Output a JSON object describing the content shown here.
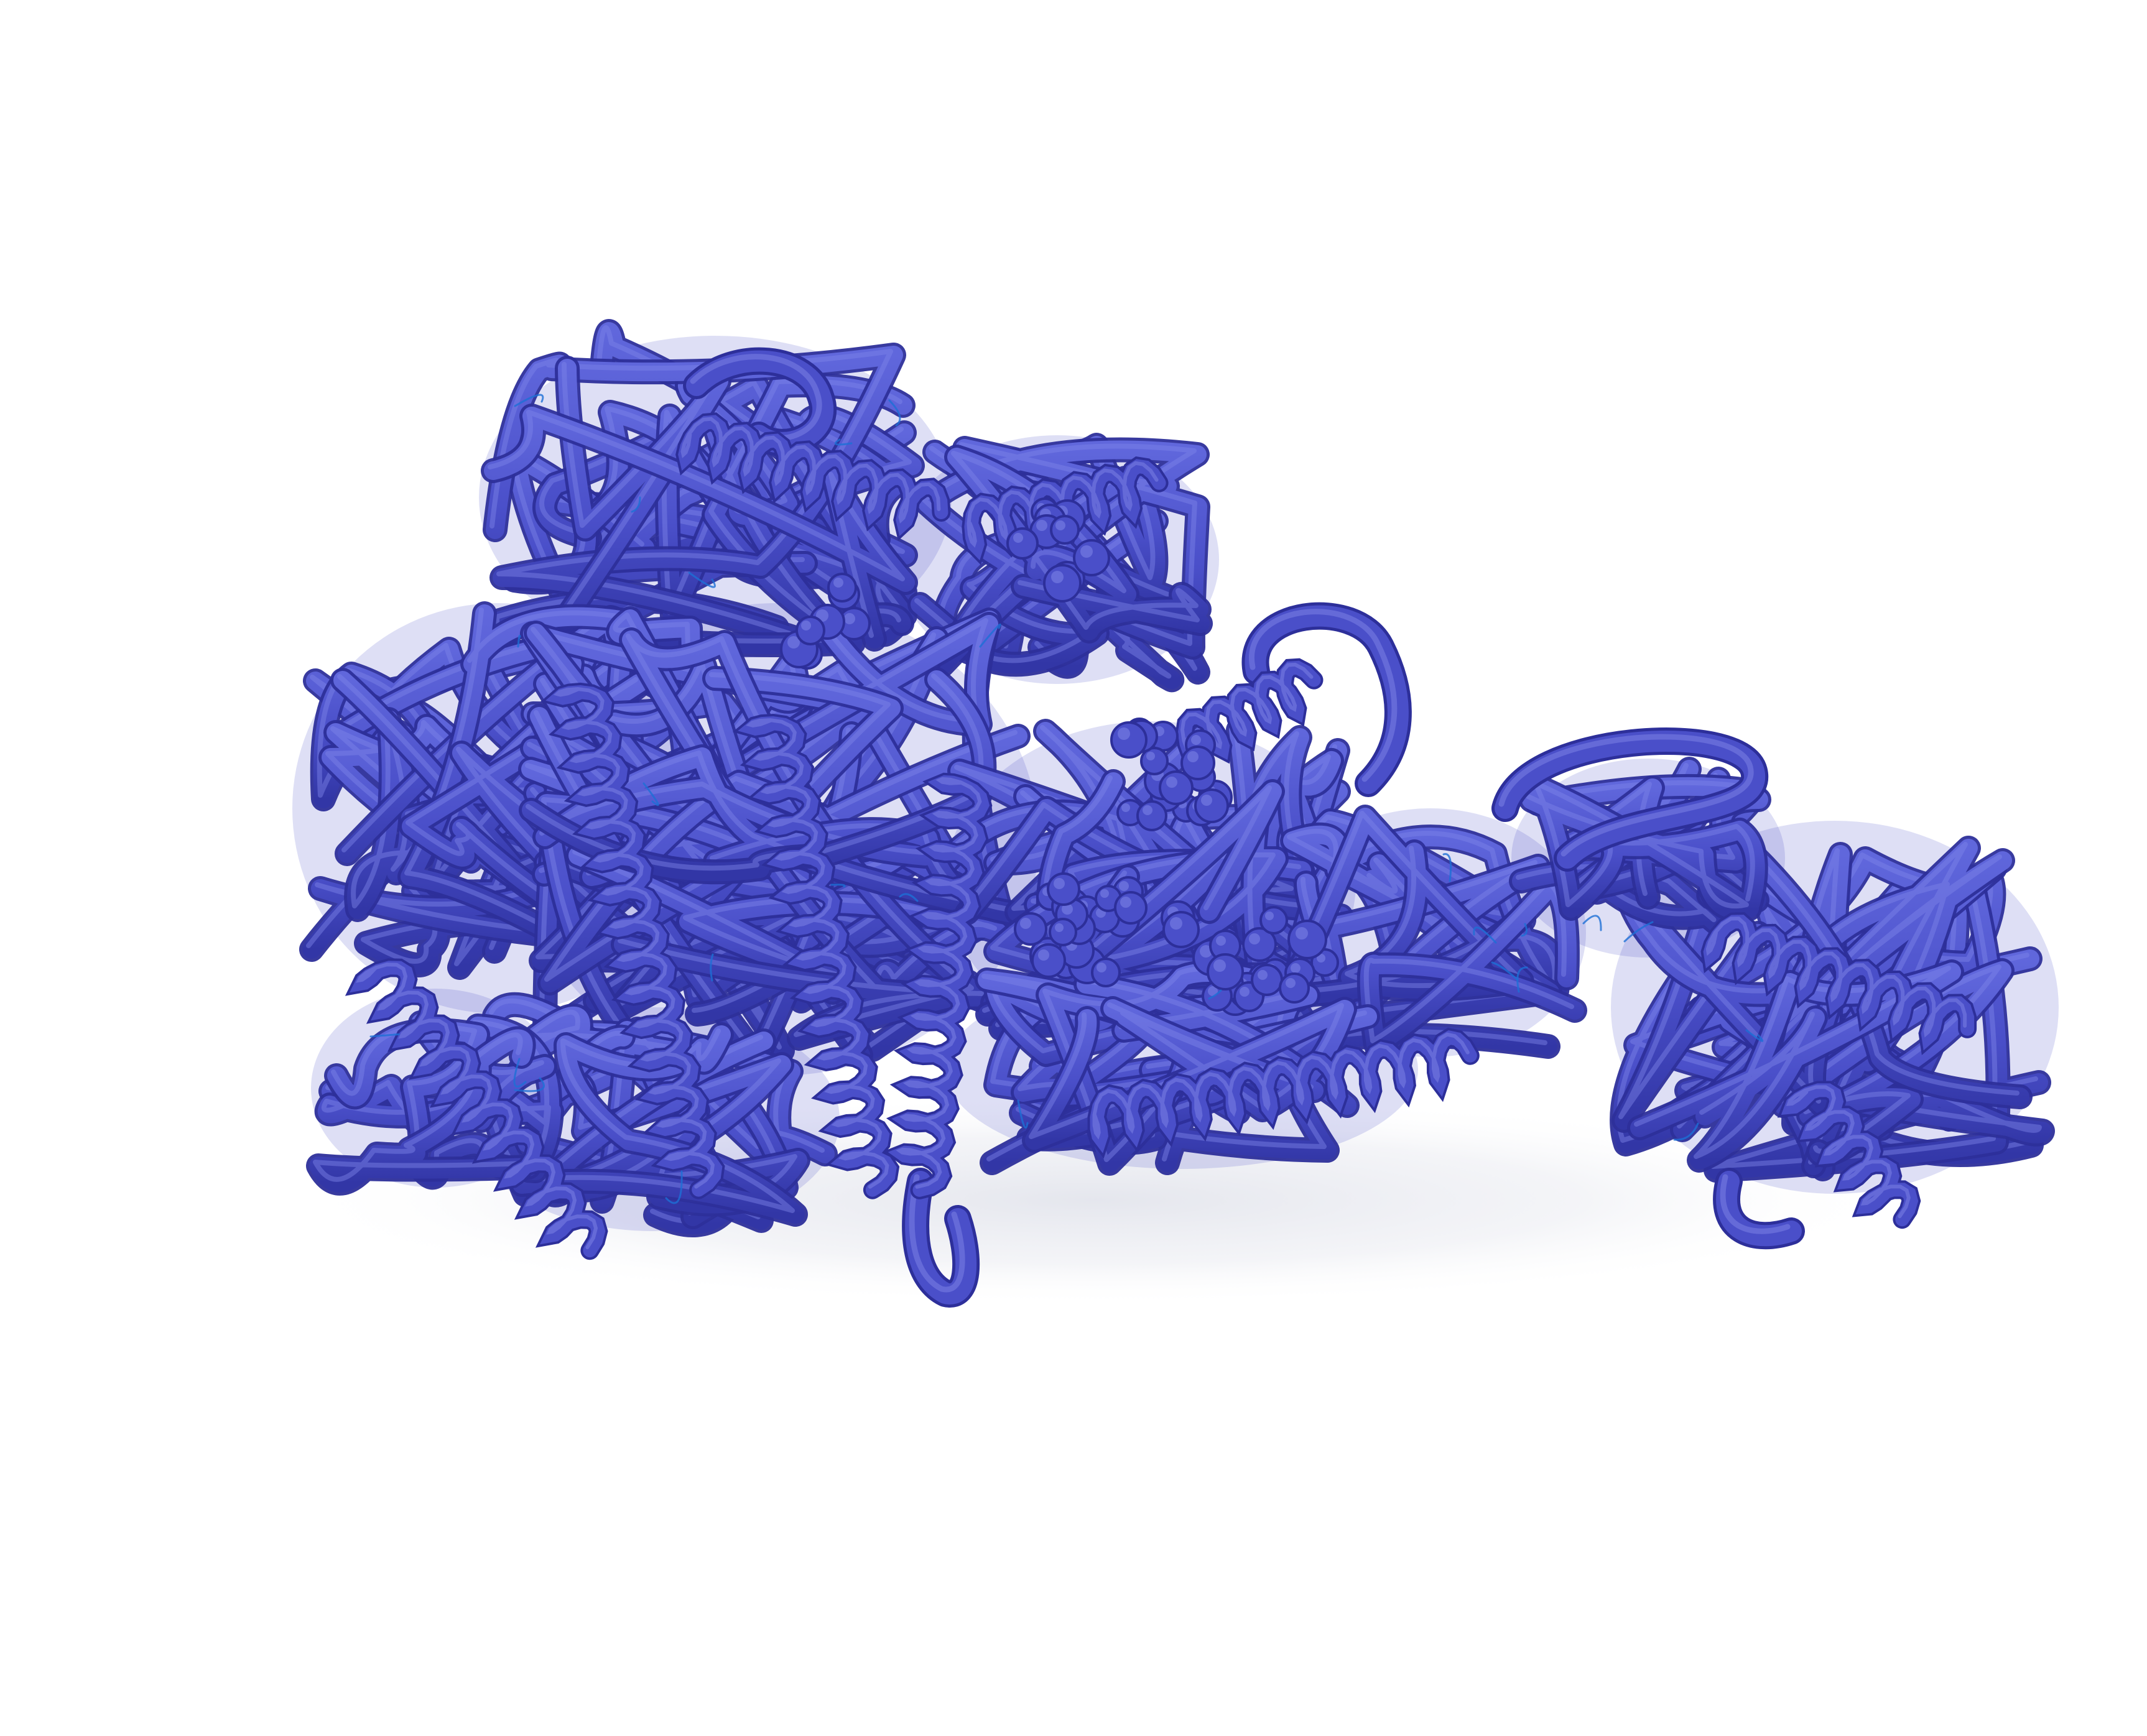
{
  "photo": {
    "subject": "3d-printed-protein-model",
    "colors": {
      "background": "#ffffff",
      "model_base": "#4a4fc9",
      "model_dark": "#2d2f9a",
      "model_highlight": "#7f86e8",
      "shadow": "#d9dbe6",
      "fiber_accent": "#1d6fd6"
    }
  }
}
